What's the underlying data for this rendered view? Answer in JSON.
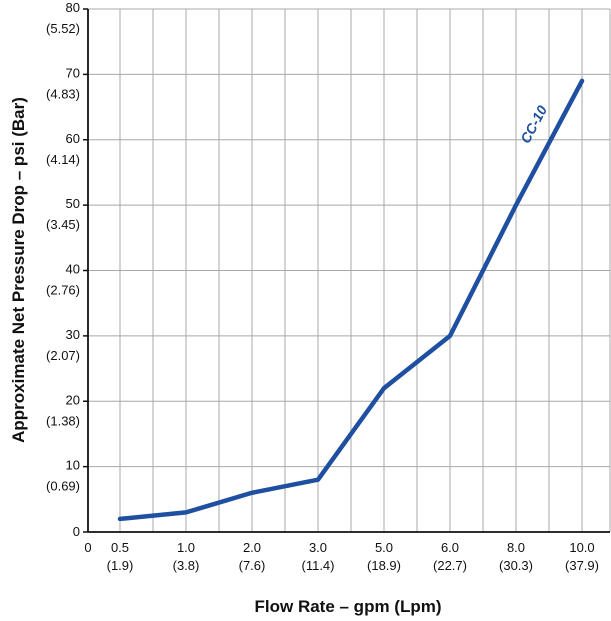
{
  "chart_data": {
    "type": "line",
    "xlabel": "Flow Rate – gpm (Lpm)",
    "ylabel": "Approximate Net Pressure Drop – psi (Bar)",
    "x_origin_label": "0",
    "x_categories": [
      {
        "gpm": "0.5",
        "lpm": "(1.9)"
      },
      {
        "gpm": "1.0",
        "lpm": "(3.8)"
      },
      {
        "gpm": "2.0",
        "lpm": "(7.6)"
      },
      {
        "gpm": "3.0",
        "lpm": "(11.4)"
      },
      {
        "gpm": "5.0",
        "lpm": "(18.9)"
      },
      {
        "gpm": "6.0",
        "lpm": "(22.7)"
      },
      {
        "gpm": "8.0",
        "lpm": "(30.3)"
      },
      {
        "gpm": "10.0",
        "lpm": "(37.9)"
      }
    ],
    "y_ticks": [
      {
        "psi": "0",
        "bar": ""
      },
      {
        "psi": "10",
        "bar": "(0.69)"
      },
      {
        "psi": "20",
        "bar": "(1.38)"
      },
      {
        "psi": "30",
        "bar": "(2.07)"
      },
      {
        "psi": "40",
        "bar": "(2.76)"
      },
      {
        "psi": "50",
        "bar": "(3.45)"
      },
      {
        "psi": "60",
        "bar": "(4.14)"
      },
      {
        "psi": "70",
        "bar": "(4.83)"
      },
      {
        "psi": "80",
        "bar": "(5.52)"
      }
    ],
    "ylim": [
      0,
      80
    ],
    "grid": true,
    "series": [
      {
        "name": "CC-10",
        "color": "#1f4fa0",
        "points": [
          {
            "x": "0.5",
            "y": 2
          },
          {
            "x": "1.0",
            "y": 3
          },
          {
            "x": "2.0",
            "y": 6
          },
          {
            "x": "3.0",
            "y": 8
          },
          {
            "x": "5.0",
            "y": 22
          },
          {
            "x": "6.0",
            "y": 30
          },
          {
            "x": "8.0",
            "y": 50
          },
          {
            "x": "10.0",
            "y": 69
          }
        ]
      }
    ]
  }
}
